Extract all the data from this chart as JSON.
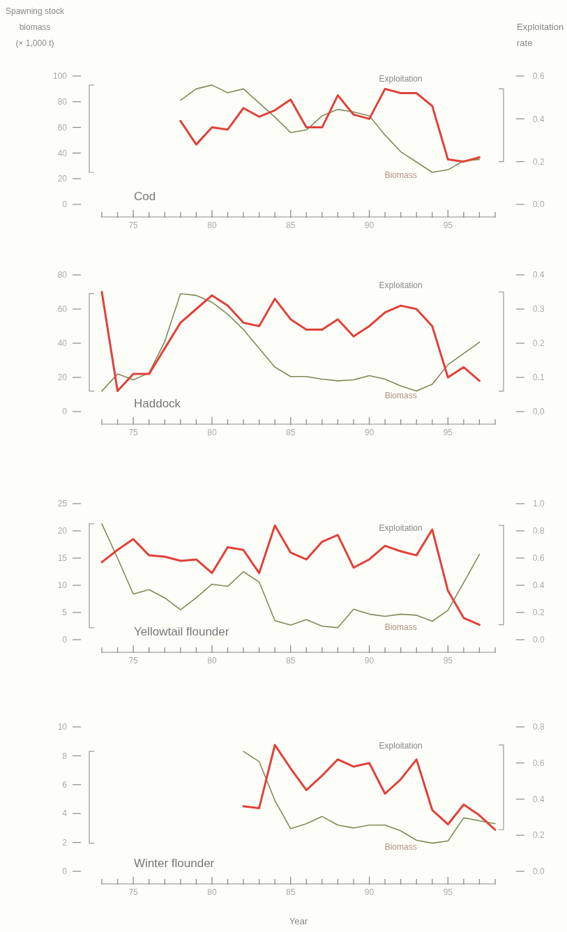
{
  "chart_data": [
    {
      "type": "line",
      "title": "Cod",
      "ylabel": "Spawning stock biomass (× 1,000 t)",
      "y2label": "Exploitation rate",
      "x": [
        78,
        79,
        80,
        81,
        82,
        83,
        84,
        85,
        86,
        87,
        88,
        89,
        90,
        91,
        92,
        93,
        94,
        95,
        96,
        97
      ],
      "series": [
        {
          "name": "Biomass",
          "color": "#7f8a56",
          "values": [
            81,
            90,
            93,
            87,
            90,
            79,
            68,
            56,
            58,
            69,
            74,
            72,
            69,
            54,
            41,
            33,
            25,
            27,
            34,
            35
          ]
        },
        {
          "name": "Exploitation",
          "color": "#e0413a",
          "axis": "y2",
          "values": [
            0.39,
            0.28,
            0.36,
            0.35,
            0.45,
            0.41,
            0.44,
            0.49,
            0.36,
            0.36,
            0.51,
            0.42,
            0.4,
            0.54,
            0.52,
            0.52,
            0.46,
            0.21,
            0.2,
            0.22
          ]
        }
      ],
      "xlim": [
        73,
        98
      ],
      "xticks": [
        {
          "value": 73,
          "label": null
        },
        {
          "value": 74,
          "label": null
        },
        75,
        {
          "value": 76,
          "label": null
        },
        {
          "value": 77,
          "label": null
        },
        {
          "value": 78,
          "label": null
        },
        {
          "value": 79,
          "label": null
        },
        80,
        {
          "value": 81,
          "label": null
        },
        {
          "value": 82,
          "label": null
        },
        {
          "value": 83,
          "label": null
        },
        {
          "value": 84,
          "label": null
        },
        85,
        {
          "value": 86,
          "label": null
        },
        {
          "value": 87,
          "label": null
        },
        {
          "value": 88,
          "label": null
        },
        {
          "value": 89,
          "label": null
        },
        90,
        {
          "value": 91,
          "label": null
        },
        {
          "value": 92,
          "label": null
        },
        {
          "value": 93,
          "label": null
        },
        {
          "value": 94,
          "label": null
        },
        95,
        {
          "value": 96,
          "label": null
        },
        {
          "value": 97,
          "label": null
        },
        {
          "value": 98,
          "label": null
        }
      ],
      "ylim": [
        0,
        100
      ],
      "yticks": [
        0,
        20,
        40,
        60,
        80,
        100
      ],
      "y2lim": [
        0,
        0.6
      ],
      "y2ticks": [
        {
          "value": 0,
          "label": "0.0"
        },
        {
          "value": 0.2,
          "label": "0.2"
        },
        {
          "value": 0.4,
          "label": "0.4"
        },
        {
          "value": 0.6,
          "label": "0.6"
        }
      ],
      "grid": false,
      "marker": "none"
    },
    {
      "type": "line",
      "title": "Haddock",
      "x": [
        73,
        74,
        75,
        76,
        77,
        78,
        79,
        80,
        81,
        82,
        83,
        84,
        85,
        86,
        87,
        88,
        89,
        90,
        91,
        92,
        93,
        94,
        95,
        96,
        97
      ],
      "series": [
        {
          "name": "Biomass",
          "color": "#7f8a56",
          "values": [
            12,
            22,
            18.6,
            22.6,
            41,
            69,
            68,
            64,
            57,
            48,
            37,
            26,
            20.5,
            20.5,
            19,
            18,
            18.6,
            21,
            19,
            15,
            12,
            16,
            27.5,
            34,
            40.6
          ]
        },
        {
          "name": "Exploitation",
          "color": "#e0413a",
          "axis": "y2",
          "values": [
            0.35,
            0.06,
            0.11,
            0.11,
            0.185,
            0.26,
            0.3,
            0.34,
            0.31,
            0.26,
            0.25,
            0.33,
            0.27,
            0.24,
            0.24,
            0.27,
            0.22,
            0.25,
            0.29,
            0.31,
            0.3,
            0.25,
            0.1,
            0.13,
            0.09
          ]
        }
      ],
      "xlim": [
        73,
        98
      ],
      "xticks": [
        {
          "value": 73,
          "label": null
        },
        {
          "value": 74,
          "label": null
        },
        75,
        {
          "value": 76,
          "label": null
        },
        {
          "value": 77,
          "label": null
        },
        {
          "value": 78,
          "label": null
        },
        {
          "value": 79,
          "label": null
        },
        80,
        {
          "value": 81,
          "label": null
        },
        {
          "value": 82,
          "label": null
        },
        {
          "value": 83,
          "label": null
        },
        {
          "value": 84,
          "label": null
        },
        85,
        {
          "value": 86,
          "label": null
        },
        {
          "value": 87,
          "label": null
        },
        {
          "value": 88,
          "label": null
        },
        {
          "value": 89,
          "label": null
        },
        90,
        {
          "value": 91,
          "label": null
        },
        {
          "value": 92,
          "label": null
        },
        {
          "value": 93,
          "label": null
        },
        {
          "value": 94,
          "label": null
        },
        95,
        {
          "value": 96,
          "label": null
        },
        {
          "value": 97,
          "label": null
        },
        {
          "value": 98,
          "label": null
        }
      ],
      "ylim": [
        0,
        80
      ],
      "yticks": [
        0,
        20,
        40,
        60,
        80
      ],
      "y2lim": [
        0,
        0.4
      ],
      "y2ticks": [
        {
          "value": 0,
          "label": "0.0"
        },
        {
          "value": 0.1,
          "label": "0.1"
        },
        {
          "value": 0.2,
          "label": "0.2"
        },
        {
          "value": 0.3,
          "label": "0.3"
        },
        {
          "value": 0.4,
          "label": "0.4"
        }
      ],
      "grid": false,
      "marker": "none"
    },
    {
      "type": "line",
      "title": "Yellowtail flounder",
      "x": [
        73,
        74,
        75,
        76,
        77,
        78,
        79,
        80,
        81,
        82,
        83,
        84,
        85,
        86,
        87,
        88,
        89,
        90,
        91,
        92,
        93,
        94,
        95,
        96,
        97
      ],
      "series": [
        {
          "name": "Biomass",
          "color": "#7f8a56",
          "values": [
            21.3,
            15,
            8.4,
            9.2,
            7.7,
            5.5,
            7.7,
            10.2,
            9.8,
            12.5,
            10.6,
            3.5,
            2.7,
            3.7,
            2.5,
            2.2,
            5.6,
            4.7,
            4.3,
            4.7,
            4.5,
            3.4,
            5.4,
            10.5,
            15.7
          ]
        },
        {
          "name": "Exploitation",
          "color": "#e0413a",
          "axis": "y2",
          "values": [
            0.57,
            0.66,
            0.74,
            0.62,
            0.61,
            0.58,
            0.59,
            0.49,
            0.68,
            0.66,
            0.49,
            0.84,
            0.64,
            0.59,
            0.72,
            0.77,
            0.53,
            0.59,
            0.69,
            0.65,
            0.62,
            0.81,
            0.36,
            0.16,
            0.11
          ]
        }
      ],
      "xlim": [
        73,
        98
      ],
      "xticks": [
        {
          "value": 73,
          "label": null
        },
        {
          "value": 74,
          "label": null
        },
        75,
        {
          "value": 76,
          "label": null
        },
        {
          "value": 77,
          "label": null
        },
        {
          "value": 78,
          "label": null
        },
        {
          "value": 79,
          "label": null
        },
        80,
        {
          "value": 81,
          "label": null
        },
        {
          "value": 82,
          "label": null
        },
        {
          "value": 83,
          "label": null
        },
        {
          "value": 84,
          "label": null
        },
        85,
        {
          "value": 86,
          "label": null
        },
        {
          "value": 87,
          "label": null
        },
        {
          "value": 88,
          "label": null
        },
        {
          "value": 89,
          "label": null
        },
        90,
        {
          "value": 91,
          "label": null
        },
        {
          "value": 92,
          "label": null
        },
        {
          "value": 93,
          "label": null
        },
        {
          "value": 94,
          "label": null
        },
        95,
        {
          "value": 96,
          "label": null
        },
        {
          "value": 97,
          "label": null
        },
        {
          "value": 98,
          "label": null
        }
      ],
      "ylim": [
        0,
        25
      ],
      "yticks": [
        0,
        5,
        10,
        15,
        20,
        25
      ],
      "y2lim": [
        0,
        1
      ],
      "y2ticks": [
        {
          "value": 0,
          "label": "0.0"
        },
        {
          "value": 0.2,
          "label": "0.2"
        },
        {
          "value": 0.4,
          "label": "0.4"
        },
        {
          "value": 0.6,
          "label": "0.6"
        },
        {
          "value": 0.8,
          "label": "0.8"
        },
        {
          "value": 1,
          "label": "1.0"
        }
      ],
      "grid": false,
      "marker": "none"
    },
    {
      "type": "line",
      "title": "Winter flounder",
      "xlabel": "Year",
      "x": [
        82,
        83,
        84,
        85,
        86,
        87,
        88,
        89,
        90,
        91,
        92,
        93,
        94,
        95,
        96,
        97,
        98
      ],
      "series": [
        {
          "name": "Biomass",
          "color": "#7f8a56",
          "values": [
            8.3,
            7.6,
            4.9,
            2.95,
            3.3,
            3.8,
            3.2,
            3,
            3.2,
            3.2,
            2.8,
            2.15,
            1.95,
            2.1,
            3.7,
            3.5,
            3.3
          ]
        },
        {
          "name": "Exploitation",
          "color": "#e0413a",
          "axis": "y2",
          "values": [
            0.36,
            0.35,
            0.7,
            0.57,
            0.45,
            0.53,
            0.62,
            0.58,
            0.6,
            0.43,
            0.51,
            0.62,
            0.34,
            0.26,
            0.37,
            0.31,
            0.23
          ]
        }
      ],
      "xlim": [
        73,
        98
      ],
      "xticks": [
        {
          "value": 73,
          "label": null
        },
        {
          "value": 74,
          "label": null
        },
        75,
        {
          "value": 76,
          "label": null
        },
        {
          "value": 77,
          "label": null
        },
        {
          "value": 78,
          "label": null
        },
        {
          "value": 79,
          "label": null
        },
        80,
        {
          "value": 81,
          "label": null
        },
        {
          "value": 82,
          "label": null
        },
        {
          "value": 83,
          "label": null
        },
        {
          "value": 84,
          "label": null
        },
        85,
        {
          "value": 86,
          "label": null
        },
        {
          "value": 87,
          "label": null
        },
        {
          "value": 88,
          "label": null
        },
        {
          "value": 89,
          "label": null
        },
        90,
        {
          "value": 91,
          "label": null
        },
        {
          "value": 92,
          "label": null
        },
        {
          "value": 93,
          "label": null
        },
        {
          "value": 94,
          "label": null
        },
        95,
        {
          "value": 96,
          "label": null
        },
        {
          "value": 97,
          "label": null
        },
        {
          "value": 98,
          "label": null
        }
      ],
      "ylim": [
        0,
        10
      ],
      "yticks": [
        0,
        2,
        4,
        6,
        8,
        10
      ],
      "y2lim": [
        0,
        0.8
      ],
      "y2ticks": [
        {
          "value": 0,
          "label": "0.0"
        },
        {
          "value": 0.2,
          "label": "0.2"
        },
        {
          "value": 0.4,
          "label": "0.4"
        },
        {
          "value": 0.6,
          "label": "0.6"
        },
        {
          "value": 0.8,
          "label": "0.8"
        }
      ],
      "grid": false,
      "marker": "none"
    }
  ]
}
